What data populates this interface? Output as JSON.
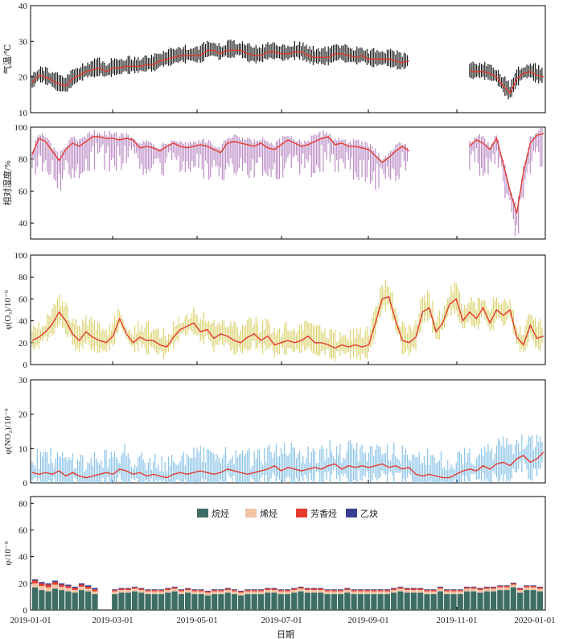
{
  "chart_data": [
    {
      "type": "line",
      "ylabel": "气温/℃",
      "ylim": [
        10,
        40
      ],
      "yticks": [
        10,
        20,
        30,
        40
      ],
      "colors": {
        "range": "#000000",
        "mean": "#e53b2c"
      },
      "series": [
        {
          "values": [
            18.5,
            20.5,
            20,
            19,
            18,
            17.5,
            19.5,
            20.5,
            21.5,
            22,
            22.5,
            21.5,
            22.5,
            22.5,
            23,
            23,
            23,
            23.5,
            23.5,
            24.5,
            25,
            25.5,
            26,
            26,
            26,
            26,
            27.5,
            27.5,
            26.5,
            27.5,
            27.5,
            27.5,
            26.5,
            26,
            26,
            27,
            27,
            26.5,
            26.5,
            27,
            27,
            26,
            25.5,
            25.5,
            25.5,
            26.5,
            26.5,
            26,
            25.5,
            26,
            25,
            25,
            25,
            25,
            24.5,
            24,
            24.5,
            null,
            null,
            null,
            null,
            null,
            null,
            null,
            null,
            21.5,
            21.5,
            21.5,
            21,
            20,
            17.5,
            15.5,
            19.5,
            21,
            21.5,
            20.5,
            20
          ]
        }
      ]
    },
    {
      "type": "line",
      "ylabel": "相对湿度/%",
      "ylim": [
        30,
        100
      ],
      "yticks": [
        40,
        60,
        80,
        100
      ],
      "colors": {
        "range": "#b57fc0",
        "mean": "#e53b2c"
      },
      "series": [
        {
          "values": [
            83,
            93,
            91,
            85,
            79,
            86,
            90,
            88,
            91,
            94,
            94,
            93,
            93,
            92,
            93,
            92,
            87,
            88,
            87,
            85,
            88,
            90,
            88,
            87,
            88,
            89,
            88,
            86,
            84,
            90,
            91,
            90,
            89,
            88,
            90,
            87,
            86,
            89,
            92,
            90,
            88,
            89,
            91,
            93,
            94,
            89,
            90,
            88,
            88,
            87,
            86,
            82,
            78,
            81,
            85,
            88,
            85,
            null,
            null,
            null,
            null,
            null,
            null,
            null,
            null,
            88,
            92,
            90,
            86,
            93,
            77,
            60,
            46,
            72,
            90,
            95,
            96
          ]
        }
      ]
    },
    {
      "type": "line",
      "ylabel": "φ(O₃)/10⁻⁹",
      "ylim": [
        0,
        100
      ],
      "yticks": [
        0,
        20,
        40,
        60,
        80,
        100
      ],
      "colors": {
        "range": "#d8ce60",
        "mean": "#e53b2c"
      },
      "series": [
        {
          "values": [
            22,
            25,
            30,
            37,
            48,
            40,
            28,
            22,
            30,
            25,
            22,
            20,
            26,
            42,
            28,
            20,
            25,
            22,
            22,
            18,
            16,
            25,
            32,
            35,
            38,
            30,
            32,
            24,
            28,
            26,
            22,
            20,
            25,
            28,
            22,
            26,
            18,
            20,
            22,
            20,
            22,
            26,
            20,
            20,
            18,
            15,
            18,
            16,
            18,
            16,
            18,
            38,
            60,
            62,
            40,
            22,
            20,
            25,
            48,
            52,
            30,
            38,
            55,
            60,
            40,
            48,
            42,
            52,
            38,
            50,
            45,
            50,
            25,
            18,
            36,
            24,
            26
          ]
        }
      ]
    },
    {
      "type": "line",
      "ylabel": "φ(NO₂)/10⁻⁹",
      "ylim": [
        0,
        30
      ],
      "yticks": [
        0,
        10,
        20,
        30
      ],
      "colors": {
        "range": "#7cbde5",
        "mean": "#e53b2c"
      },
      "series": [
        {
          "values": [
            3,
            2.5,
            3,
            2.5,
            3.5,
            2,
            3,
            2,
            1.5,
            2,
            2.5,
            3,
            2.5,
            4,
            3.5,
            2.5,
            3,
            2,
            2.5,
            2,
            1.5,
            2.5,
            3,
            2.5,
            3,
            3.5,
            3,
            2.5,
            3,
            4,
            3.5,
            3,
            2.5,
            3,
            3.5,
            4,
            5,
            3.5,
            4.5,
            4,
            3.5,
            4,
            4.5,
            4,
            5,
            5.5,
            4,
            5,
            4.5,
            5,
            4.5,
            5,
            5.5,
            4.5,
            5,
            4,
            4.5,
            2.5,
            2,
            2.5,
            2,
            1.5,
            1.5,
            2.5,
            3.5,
            4,
            3.5,
            5,
            4,
            5.5,
            6,
            5,
            7,
            8,
            6,
            7,
            9
          ]
        }
      ]
    },
    {
      "type": "bar",
      "ylabel": "φ/10⁻⁹",
      "ylim": [
        0,
        85
      ],
      "yticks": [
        0,
        20,
        40,
        60,
        80
      ],
      "legend_position": "top",
      "xlabel": "日期",
      "x_tick_labels": [
        "2019-01-01",
        "2019-03-01",
        "2019-05-01",
        "2019-07-01",
        "2019-09-01",
        "2019-11-01",
        "2020-01-01"
      ],
      "series": [
        {
          "name": "烷烃",
          "color": "#3d6e66",
          "values": [
            17,
            15,
            14,
            16,
            15,
            14,
            13,
            15,
            14,
            12,
            null,
            null,
            12,
            13,
            13,
            14,
            13,
            12,
            12,
            12,
            13,
            14,
            12,
            13,
            12,
            12,
            11,
            12,
            12,
            13,
            12,
            11,
            12,
            12,
            12,
            13,
            13,
            12,
            12,
            13,
            14,
            13,
            13,
            13,
            12,
            12,
            12,
            13,
            12,
            12,
            12,
            12,
            12,
            12,
            13,
            14,
            13,
            13,
            13,
            12,
            12,
            14,
            12,
            12,
            12,
            14,
            14,
            13,
            14,
            14,
            15,
            15,
            17,
            13,
            15,
            15,
            14
          ]
        },
        {
          "name": "烯烃",
          "color": "#f2c3a4",
          "values": [
            3,
            3,
            3,
            3,
            2.5,
            2.5,
            2,
            2.5,
            2,
            2,
            null,
            null,
            2,
            2,
            2,
            2,
            2,
            2,
            2,
            2,
            2,
            2,
            2,
            2,
            2,
            2,
            2,
            2,
            2,
            2,
            2,
            2,
            2,
            2,
            2,
            2,
            2,
            2,
            2,
            2,
            2,
            2,
            2,
            2,
            2,
            2,
            2,
            2,
            2,
            2,
            2,
            2,
            2,
            2,
            2,
            2,
            2,
            2,
            2,
            2,
            2,
            2,
            2,
            2,
            2,
            2,
            2,
            2,
            2,
            2,
            2,
            2,
            2,
            2,
            2,
            2,
            2
          ]
        },
        {
          "name": "芳香烃",
          "color": "#e53b2c",
          "values": [
            2,
            2,
            2,
            2,
            1.5,
            1.5,
            1.5,
            1.5,
            1.5,
            1.5,
            null,
            null,
            1,
            1,
            1,
            1,
            1,
            1,
            1,
            1,
            1,
            1,
            1,
            1,
            1,
            1,
            1,
            1,
            1,
            1,
            1,
            1,
            1,
            1,
            1,
            1,
            1,
            1,
            1,
            1,
            1,
            1,
            1,
            1,
            1,
            1,
            1,
            1,
            1,
            1,
            1,
            1,
            1,
            1,
            1,
            1,
            1,
            1,
            1,
            1,
            1,
            1,
            1,
            1,
            1,
            1,
            1,
            1,
            1,
            1,
            1,
            1,
            1,
            1,
            1,
            1,
            1
          ]
        },
        {
          "name": "乙炔",
          "color": "#3a3f95",
          "values": [
            1,
            1,
            1,
            1,
            1,
            1,
            1,
            1,
            1,
            1,
            null,
            null,
            0.5,
            0.5,
            0.5,
            0.5,
            0.5,
            0.5,
            0.5,
            0.5,
            0.5,
            0.5,
            0.5,
            0.5,
            0.5,
            0.5,
            0.5,
            0.5,
            0.5,
            0.5,
            0.5,
            0.5,
            0.5,
            0.5,
            0.5,
            0.5,
            0.5,
            0.5,
            0.5,
            0.5,
            0.5,
            0.5,
            0.5,
            0.5,
            0.5,
            0.5,
            0.5,
            0.5,
            0.5,
            0.5,
            0.5,
            0.5,
            0.5,
            0.5,
            0.5,
            0.5,
            0.5,
            0.5,
            0.5,
            0.5,
            0.5,
            0.5,
            0.5,
            0.5,
            0.5,
            0.5,
            0.5,
            0.5,
            0.5,
            0.5,
            0.5,
            0.5,
            0.5,
            0.5,
            0.5,
            0.5,
            0.5
          ]
        }
      ]
    }
  ]
}
